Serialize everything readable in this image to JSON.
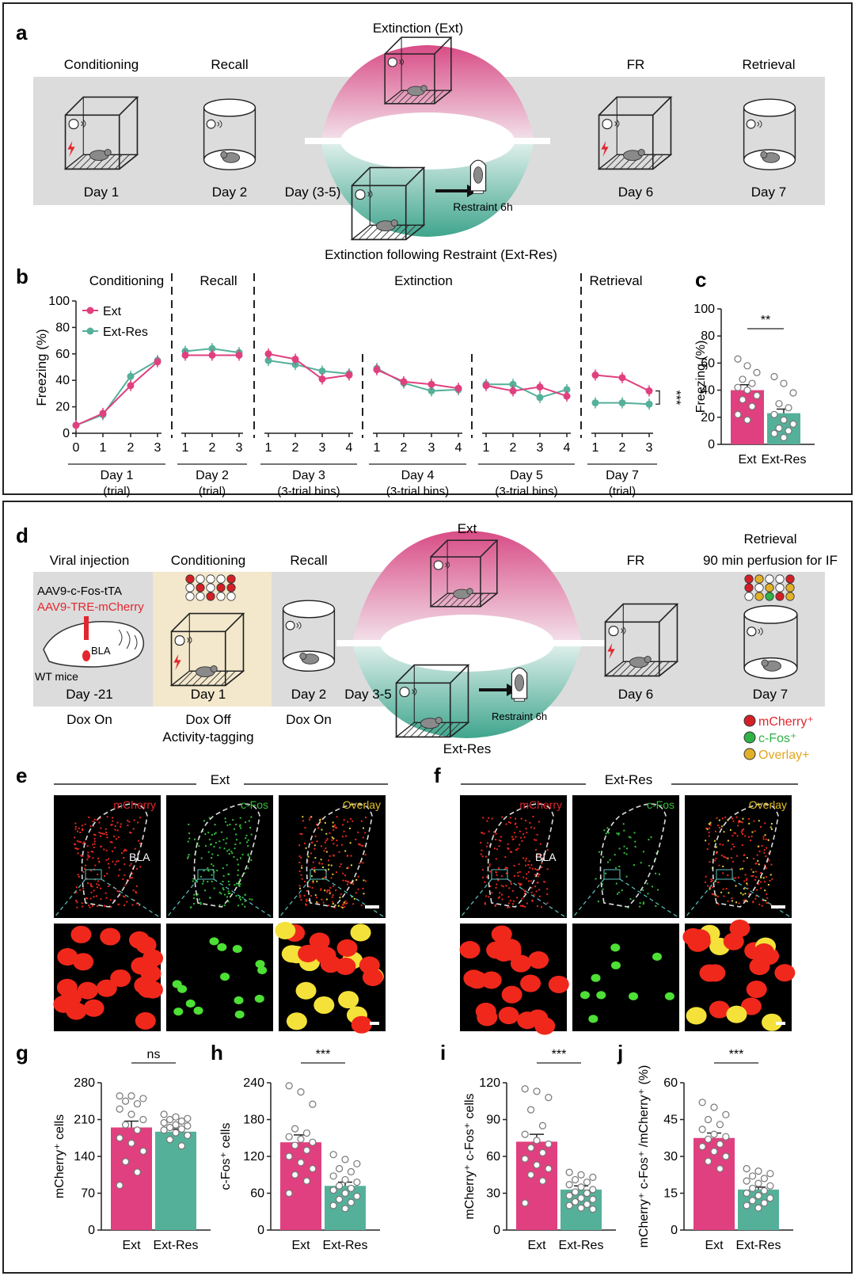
{
  "figure": {
    "panel_letters": [
      "a",
      "b",
      "c",
      "d",
      "e",
      "f",
      "g",
      "h",
      "i",
      "j"
    ],
    "panel_a": {
      "stages": [
        "Conditioning",
        "Recall",
        "Extinction (Ext)",
        "FR",
        "Retrieval"
      ],
      "days": [
        "Day 1",
        "Day 2",
        "Day (3-5)",
        "Day 6",
        "Day 7"
      ],
      "restraint": "Restraint 6h",
      "ext_res_label": "Extinction following Restraint (Ext-Res)"
    },
    "panel_d": {
      "stages": [
        "Viral injection",
        "Conditioning",
        "Recall",
        "Ext",
        "FR",
        "Retrieval"
      ],
      "retrieval_sub": "90 min perfusion for IF",
      "virus1": "AAV9-c-Fos-tTA",
      "virus2": "AAV9-TRE-mCherry",
      "bla": "BLA",
      "mice": "WT mice",
      "days": [
        "Day -21",
        "Day 1",
        "Day 2",
        "Day 3-5",
        "Day 6",
        "Day 7"
      ],
      "dox": [
        "Dox On",
        "Dox Off",
        "Activity-tagging",
        "Dox On"
      ],
      "restraint": "Restraint 6h",
      "ext_res": "Ext-Res",
      "legend": [
        "mCherry⁺",
        "c-Fos⁺",
        "Overlay+"
      ]
    },
    "panel_ef": {
      "e_title": "Ext",
      "f_title": "Ext-Res",
      "channels": [
        "mCherry",
        "c-Fos",
        "Overlay"
      ],
      "bla": "BLA"
    }
  },
  "colors": {
    "ext": "#e0407f",
    "extres": "#55b09a",
    "mcherry": "#e8281e",
    "cfos": "#34c03a",
    "overlay": "#e3b128"
  },
  "chart_data": [
    {
      "id": "b",
      "type": "line",
      "ylabel": "Freezing (%)",
      "ylim": [
        0,
        100
      ],
      "yticks": [
        0,
        20,
        40,
        60,
        80,
        100
      ],
      "legend": [
        "Ext",
        "Ext-Res"
      ],
      "significance": "***",
      "segments": [
        {
          "title": "Conditioning",
          "x": [
            0,
            1,
            2,
            3
          ],
          "day": "Day 1",
          "unit": "(trial)",
          "ext": [
            6,
            15,
            36,
            54
          ],
          "extres": [
            6,
            14,
            43,
            55
          ]
        },
        {
          "title": "Recall",
          "x": [
            1,
            2,
            3
          ],
          "day": "Day 2",
          "unit": "(trial)",
          "ext": [
            59,
            59,
            59
          ],
          "extres": [
            62,
            64,
            61
          ]
        },
        {
          "title": "Extinction",
          "x": [
            1,
            2,
            3,
            4
          ],
          "day": "Day 3",
          "unit": "(3-trial bins)",
          "ext": [
            60,
            56,
            41,
            44
          ],
          "extres": [
            55,
            52,
            47,
            45
          ]
        },
        {
          "title": "",
          "x": [
            1,
            2,
            3,
            4
          ],
          "day": "Day 4",
          "unit": "(3-trial bins)",
          "ext": [
            48,
            39,
            37,
            34
          ],
          "extres": [
            49,
            38,
            32,
            33
          ]
        },
        {
          "title": "",
          "x": [
            1,
            2,
            3,
            4
          ],
          "day": "Day 5",
          "unit": "(3-trial bins)",
          "ext": [
            36,
            32,
            35,
            28
          ],
          "extres": [
            37,
            37,
            27,
            33
          ]
        },
        {
          "title": "Retrieval",
          "x": [
            1,
            2,
            3
          ],
          "day": "Day 7",
          "unit": "(trial)",
          "ext": [
            44,
            42,
            32
          ],
          "extres": [
            23,
            23,
            22
          ]
        }
      ]
    },
    {
      "id": "c",
      "type": "bar",
      "ylabel": "Freezing (%)",
      "ylim": [
        0,
        100
      ],
      "yticks": [
        0,
        20,
        40,
        60,
        80,
        100
      ],
      "categories": [
        "Ext",
        "Ext-Res"
      ],
      "values": [
        40,
        23
      ],
      "sem": [
        4,
        3
      ],
      "significance": "**",
      "points": [
        [
          63,
          58,
          53,
          48,
          45,
          42,
          40,
          36,
          33,
          28,
          22,
          18
        ],
        [
          50,
          45,
          38,
          30,
          27,
          22,
          18,
          15,
          12,
          10,
          8,
          5
        ]
      ]
    },
    {
      "id": "g",
      "type": "bar",
      "ylabel": "mCherry⁺ cells",
      "ylim": [
        0,
        280
      ],
      "yticks": [
        0,
        70,
        140,
        210,
        280
      ],
      "categories": [
        "Ext",
        "Ext-Res"
      ],
      "values": [
        195,
        187
      ],
      "sem": [
        12,
        5
      ],
      "significance": "ns",
      "points": [
        [
          255,
          255,
          250,
          245,
          240,
          230,
          220,
          210,
          200,
          190,
          175,
          165,
          150,
          130,
          110,
          85
        ],
        [
          220,
          215,
          212,
          210,
          207,
          204,
          200,
          198,
          195,
          192,
          190,
          185,
          180,
          172,
          160
        ]
      ]
    },
    {
      "id": "h",
      "type": "bar",
      "ylabel": "c-Fos⁺ cells",
      "ylim": [
        0,
        240
      ],
      "yticks": [
        0,
        60,
        120,
        180,
        240
      ],
      "categories": [
        "Ext",
        "Ext-Res"
      ],
      "values": [
        143,
        72
      ],
      "sem": [
        12,
        6
      ],
      "significance": "***",
      "points": [
        [
          235,
          225,
          205,
          165,
          158,
          152,
          148,
          143,
          138,
          130,
          120,
          110,
          100,
          90,
          80,
          60
        ],
        [
          123,
          115,
          108,
          100,
          95,
          88,
          82,
          78,
          72,
          68,
          65,
          60,
          55,
          50,
          45,
          40,
          35
        ]
      ]
    },
    {
      "id": "i",
      "type": "bar",
      "ylabel": "mCherry⁺ c-Fos⁺ cells",
      "ylim": [
        0,
        120
      ],
      "yticks": [
        0,
        30,
        60,
        90,
        120
      ],
      "categories": [
        "Ext",
        "Ext-Res"
      ],
      "values": [
        72,
        33
      ],
      "sem": [
        6,
        3
      ],
      "significance": "***",
      "points": [
        [
          115,
          113,
          108,
          98,
          85,
          78,
          73,
          70,
          67,
          63,
          58,
          53,
          50,
          45,
          40,
          22
        ],
        [
          47,
          45,
          43,
          41,
          39,
          37,
          35,
          33,
          31,
          30,
          28,
          26,
          25,
          23,
          21,
          20,
          18,
          17
        ]
      ]
    },
    {
      "id": "j",
      "type": "bar",
      "ylabel": "mCherry⁺ c-Fos⁺ /mCherry⁺ (%)",
      "ylim": [
        0,
        60
      ],
      "yticks": [
        0,
        15,
        30,
        45,
        60
      ],
      "categories": [
        "Ext",
        "Ext-Res"
      ],
      "values": [
        37.5,
        16.5
      ],
      "sem": [
        2,
        1
      ],
      "significance": "***",
      "points": [
        [
          52,
          50,
          47,
          45,
          43,
          41,
          39,
          38,
          37,
          35,
          34,
          32,
          30,
          28,
          25
        ],
        [
          25,
          24,
          23,
          22,
          21,
          20,
          19,
          18,
          17,
          16,
          15,
          14,
          13,
          12,
          11,
          10,
          9
        ]
      ]
    }
  ]
}
